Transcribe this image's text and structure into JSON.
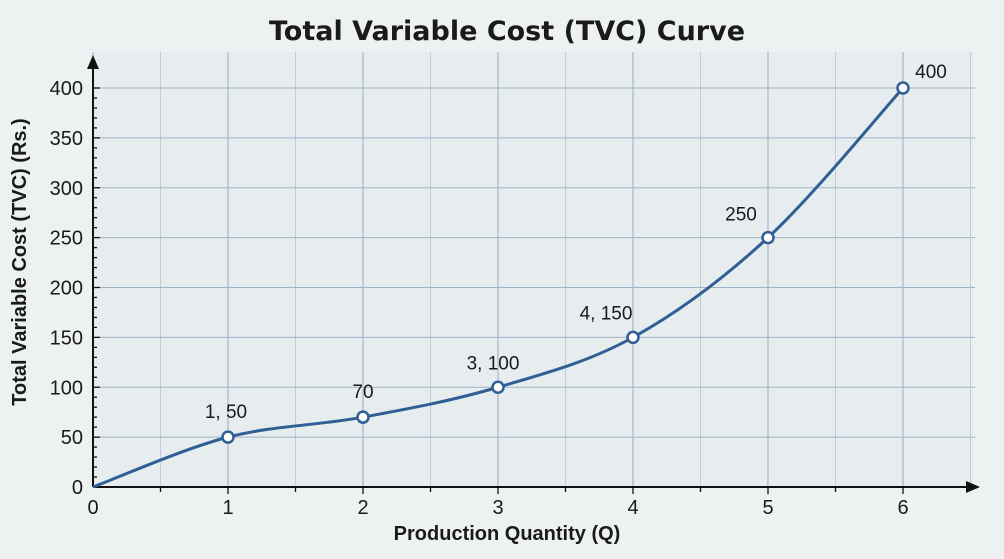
{
  "chart_data": {
    "type": "line",
    "title": "Total Variable Cost (TVC) Curve",
    "xlabel": "Production Quantity (Q)",
    "ylabel": "Total Variable Cost (TVC) (Rs.)",
    "xlim": [
      0,
      6
    ],
    "ylim": [
      0,
      400
    ],
    "x_ticks": [
      "0",
      "1",
      "2",
      "3",
      "4",
      "5",
      "6"
    ],
    "y_ticks": [
      "0",
      "50",
      "100",
      "150",
      "200",
      "250",
      "300",
      "350",
      "400"
    ],
    "grid": true,
    "line_color": "#2f5f94",
    "series": [
      {
        "x": [
          0,
          1,
          2,
          3,
          4,
          5,
          6
        ],
        "y": [
          0,
          50,
          70,
          100,
          150,
          250,
          400
        ]
      }
    ],
    "points": [
      {
        "x": 1,
        "y": 50,
        "label": "1, 50"
      },
      {
        "x": 2,
        "y": 70,
        "label": "70"
      },
      {
        "x": 3,
        "y": 100,
        "label": "3, 100"
      },
      {
        "x": 4,
        "y": 150,
        "label": "4, 150"
      },
      {
        "x": 5,
        "y": 250,
        "label": "250"
      },
      {
        "x": 6,
        "y": 400,
        "label": "400"
      }
    ]
  }
}
